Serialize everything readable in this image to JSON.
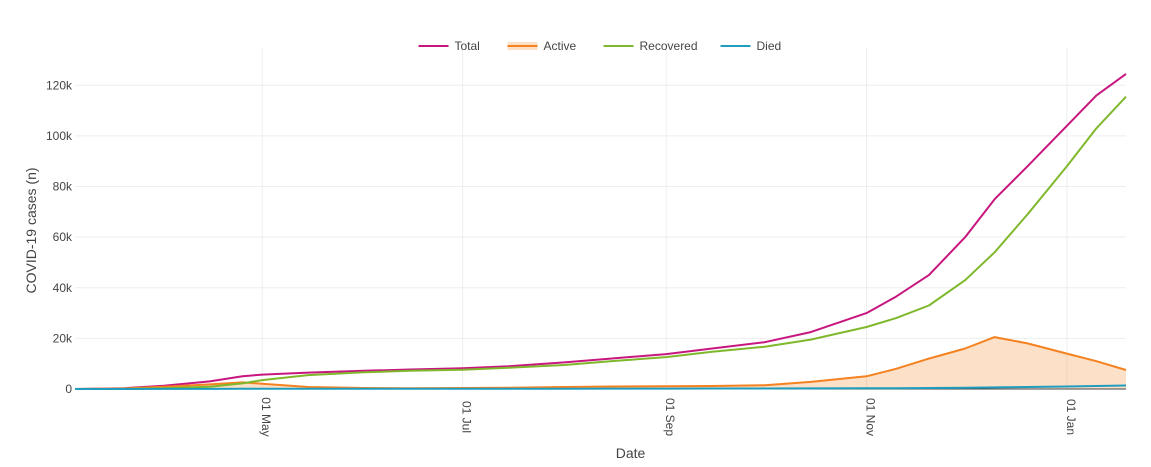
{
  "chart_data": {
    "type": "line",
    "xlabel": "Date",
    "ylabel": "COVID-19 cases (n)",
    "grid": true,
    "legend_position": "top-center",
    "xlim": [
      "2020-03-05",
      "2021-01-19"
    ],
    "ylim": [
      0,
      130000
    ],
    "x_ticks": [
      {
        "date": "2020-05-01",
        "label": "01 May"
      },
      {
        "date": "2020-07-01",
        "label": "01 Jul"
      },
      {
        "date": "2020-09-01",
        "label": "01 Sep"
      },
      {
        "date": "2020-11-01",
        "label": "01 Nov"
      },
      {
        "date": "2021-01-01",
        "label": "01 Jan"
      }
    ],
    "y_ticks": [
      {
        "value": 0,
        "label": "0"
      },
      {
        "value": 20000,
        "label": "20k"
      },
      {
        "value": 40000,
        "label": "40k"
      },
      {
        "value": 60000,
        "label": "60k"
      },
      {
        "value": 80000,
        "label": "80k"
      },
      {
        "value": 100000,
        "label": "100k"
      },
      {
        "value": 120000,
        "label": "120k"
      }
    ],
    "x": [
      "2020-03-05",
      "2020-03-20",
      "2020-04-01",
      "2020-04-15",
      "2020-04-25",
      "2020-05-01",
      "2020-05-15",
      "2020-06-01",
      "2020-06-15",
      "2020-07-01",
      "2020-07-15",
      "2020-08-01",
      "2020-08-15",
      "2020-09-01",
      "2020-09-15",
      "2020-10-01",
      "2020-10-15",
      "2020-11-01",
      "2020-11-10",
      "2020-11-20",
      "2020-12-01",
      "2020-12-10",
      "2020-12-20",
      "2021-01-01",
      "2021-01-10",
      "2021-01-19"
    ],
    "series": [
      {
        "name": "Total",
        "color": "#c7177f",
        "fill": false,
        "values": [
          0,
          300,
          1300,
          3000,
          5000,
          5700,
          6500,
          7200,
          7700,
          8200,
          9000,
          10500,
          12000,
          13800,
          16000,
          18500,
          22500,
          30000,
          36500,
          45000,
          60000,
          75000,
          88000,
          104000,
          116000,
          124500
        ]
      },
      {
        "name": "Active",
        "color": "#f58220",
        "fill": true,
        "fill_color": "rgba(245,130,32,0.25)",
        "values": [
          0,
          200,
          900,
          1800,
          2600,
          2100,
          800,
          400,
          300,
          400,
          500,
          800,
          1000,
          1100,
          1200,
          1500,
          2800,
          5000,
          8000,
          12000,
          16000,
          20500,
          18000,
          14000,
          11000,
          7500
        ]
      },
      {
        "name": "Recovered",
        "color": "#7fb82c",
        "fill": false,
        "values": [
          0,
          50,
          300,
          900,
          2200,
          3500,
          5500,
          6600,
          7200,
          7600,
          8400,
          9500,
          11000,
          12600,
          14700,
          16700,
          19500,
          24500,
          28000,
          33000,
          43000,
          54000,
          69000,
          88000,
          103000,
          115500
        ]
      },
      {
        "name": "Died",
        "color": "#1f9dbf",
        "fill": false,
        "values": [
          0,
          0,
          20,
          40,
          60,
          70,
          80,
          90,
          100,
          110,
          120,
          130,
          150,
          170,
          190,
          210,
          240,
          280,
          330,
          400,
          500,
          620,
          800,
          1000,
          1200,
          1400
        ]
      }
    ]
  }
}
